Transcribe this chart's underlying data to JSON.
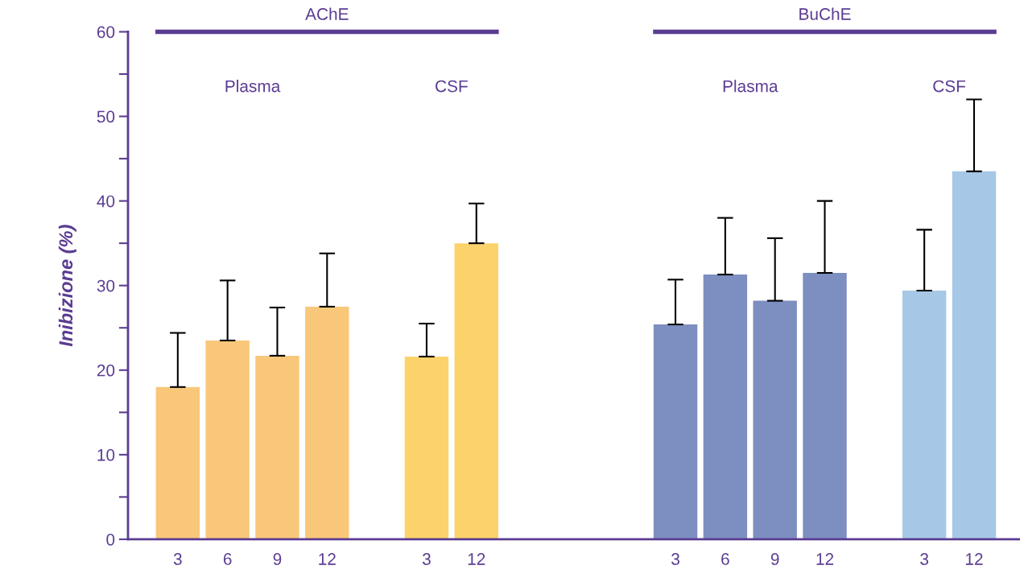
{
  "chart_data": {
    "type": "bar",
    "ylabel": "Inibizione (%)",
    "categories": [
      "3",
      "6",
      "9",
      "12",
      null,
      "3",
      "12",
      null,
      null,
      null,
      "3",
      "6",
      "9",
      "12",
      null,
      "3",
      "12"
    ],
    "values": [
      18.0,
      23.5,
      21.7,
      27.5,
      null,
      21.6,
      35.0,
      null,
      null,
      null,
      25.4,
      31.3,
      28.2,
      31.5,
      null,
      29.4,
      43.5
    ],
    "colors": [
      "#f9c77a",
      "#f9c77a",
      "#f9c77a",
      "#f9c77a",
      "#ffffff",
      "#fcd36a",
      "#fcd36a",
      "#ffffff",
      "#ffffff",
      "#ffffff",
      "#7d8ec0",
      "#7d8ec0",
      "#7d8ec0",
      "#7d8ec0",
      "#ffffff",
      "#a6c8e6",
      "#a6c8e6"
    ],
    "errors": [
      [
        18.0,
        24.4
      ],
      [
        23.5,
        30.6
      ],
      [
        21.7,
        27.4
      ],
      [
        27.5,
        33.8
      ],
      null,
      [
        21.6,
        25.5
      ],
      [
        35.0,
        39.7
      ],
      null,
      null,
      null,
      [
        25.4,
        30.7
      ],
      [
        31.3,
        38.0
      ],
      [
        28.2,
        35.6
      ],
      [
        31.5,
        40.0
      ],
      null,
      [
        29.4,
        36.6
      ],
      [
        43.5,
        52.0
      ]
    ],
    "annotations": [
      "AChE",
      "Plasma",
      "CSF",
      "BuChE",
      "Plasma",
      "CSF"
    ],
    "ylim": [
      0,
      60
    ],
    "yticks": [
      0,
      {
        "value": 5,
        "label": null
      },
      10,
      {
        "value": 15,
        "label": null
      },
      20,
      {
        "value": 25,
        "label": null
      },
      30,
      {
        "value": 35,
        "label": null
      },
      40,
      {
        "value": 45,
        "label": null
      },
      50,
      {
        "value": 55,
        "label": null
      },
      60
    ],
    "legend": false
  }
}
